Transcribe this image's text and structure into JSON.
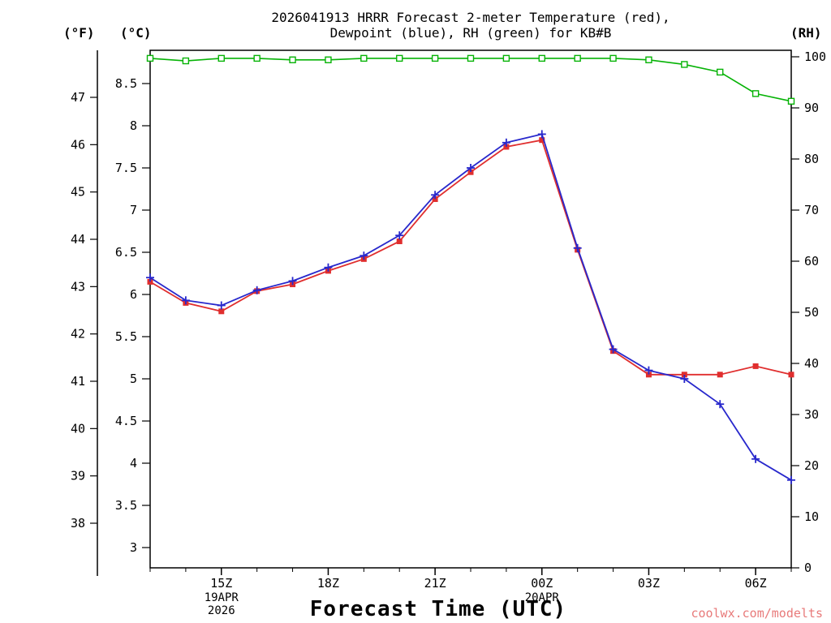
{
  "title": {
    "line1": "2026041913 HRRR Forecast 2-meter Temperature (red),",
    "line2": "Dewpoint (blue), RH (green) for KB#B"
  },
  "watermark": "coolwx.com/modelts",
  "axes": {
    "f_unit": "(°F)",
    "c_unit": "(°C)",
    "rh_unit": "(RH)",
    "x_label": "Forecast Time (UTC)",
    "f_ticks": [
      47,
      46,
      45,
      44,
      43,
      42,
      41,
      40,
      39,
      38
    ],
    "c_ticks": [
      "8.5",
      "8",
      "7.5",
      "7",
      "6.5",
      "6",
      "5.5",
      "5",
      "4.5",
      "4",
      "3.5",
      "3"
    ],
    "rh_ticks": [
      100,
      90,
      80,
      70,
      60,
      50,
      40,
      30,
      20,
      10,
      0
    ],
    "x_major_ticks": [
      {
        "hour": 15,
        "label": "15Z"
      },
      {
        "hour": 18,
        "label": "18Z"
      },
      {
        "hour": 21,
        "label": "21Z"
      },
      {
        "hour": 24,
        "label": "00Z"
      },
      {
        "hour": 27,
        "label": "03Z"
      },
      {
        "hour": 30,
        "label": "06Z"
      }
    ],
    "x_date_labels": [
      {
        "hour": 15,
        "lines": [
          "19APR",
          "2026"
        ]
      },
      {
        "hour": 24,
        "lines": [
          "20APR"
        ]
      }
    ]
  },
  "chart_data": {
    "type": "line",
    "title": "2026041913 HRRR Forecast 2-meter Temperature (red), Dewpoint (blue), RH (green) for KB#B",
    "xlabel": "Forecast Time (UTC)",
    "x_hours_utc": [
      13,
      14,
      15,
      16,
      17,
      18,
      19,
      20,
      21,
      22,
      23,
      24,
      25,
      26,
      27,
      28,
      29,
      30,
      31
    ],
    "y_left_celsius_range": [
      3,
      8.5
    ],
    "y_left_fahrenheit_range": [
      38,
      47
    ],
    "y_right_rh_range": [
      0,
      100
    ],
    "grid": false,
    "legend": "encoded in title colors",
    "series": [
      {
        "name": "2-meter Temperature",
        "unit": "C",
        "axis": "left",
        "color": "#e02e2e",
        "marker": "filled-square",
        "values": [
          6.15,
          5.9,
          5.8,
          6.04,
          6.12,
          6.28,
          6.42,
          6.63,
          7.13,
          7.45,
          7.75,
          7.83,
          6.53,
          5.33,
          5.05,
          5.05,
          5.05,
          5.15,
          5.05
        ]
      },
      {
        "name": "Dewpoint",
        "unit": "C",
        "axis": "left",
        "color": "#2828cc",
        "marker": "plus",
        "values": [
          6.2,
          5.93,
          5.87,
          6.05,
          6.16,
          6.32,
          6.46,
          6.7,
          7.18,
          7.5,
          7.8,
          7.9,
          6.55,
          5.35,
          5.1,
          5.0,
          4.7,
          4.05,
          3.8
        ]
      },
      {
        "name": "RH",
        "unit": "%",
        "axis": "right",
        "color": "#06b306",
        "marker": "open-square",
        "values": [
          99.7,
          99.2,
          99.7,
          99.7,
          99.4,
          99.4,
          99.7,
          99.7,
          99.7,
          99.7,
          99.7,
          99.7,
          99.7,
          99.7,
          99.4,
          98.5,
          97.0,
          92.8,
          91.3
        ]
      }
    ]
  }
}
